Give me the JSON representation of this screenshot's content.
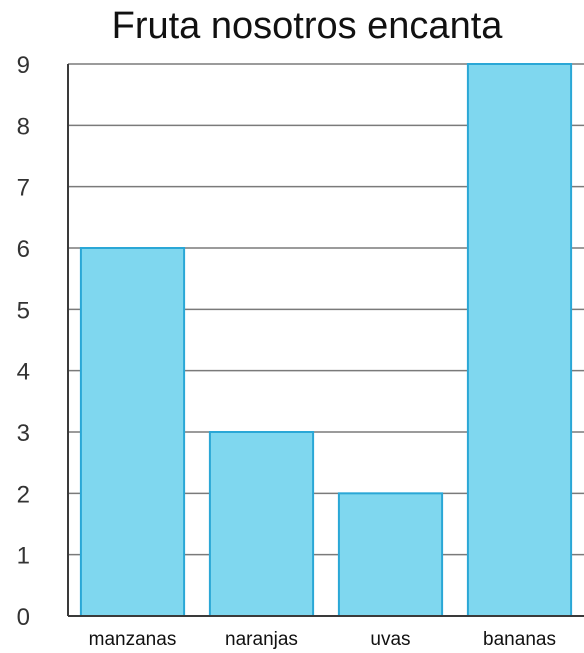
{
  "chart_data": {
    "type": "bar",
    "title": "Fruta nosotros encanta",
    "xlabel": "",
    "ylabel": "",
    "categories": [
      "manzanas",
      "naranjas",
      "uvas",
      "bananas"
    ],
    "values": [
      6,
      3,
      2,
      9
    ],
    "ylim": [
      0,
      9
    ],
    "yticks": [
      "0",
      "1",
      "2",
      "3",
      "4",
      "5",
      "6",
      "7",
      "8",
      "9"
    ],
    "grid": true,
    "legend": "none",
    "colors": {
      "bar_fill": "#7fd7ef",
      "bar_stroke": "#2aa7d6",
      "grid": "#7a7a7a",
      "axis": "#3a3a3a"
    }
  }
}
